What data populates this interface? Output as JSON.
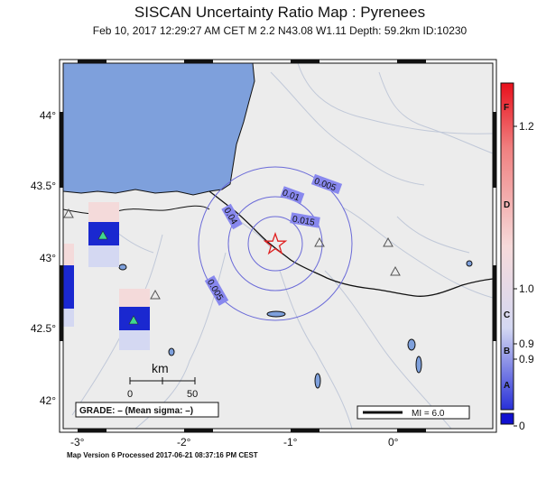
{
  "title": "SISCAN Uncertainty Ratio Map : Pyrenees",
  "subtitle": "Feb 10, 2017 12:29:27 AM CET   M 2.2   N43.08 W1.11   Depth: 59.2km   ID:10230",
  "footer": "Map Version 6 Processed 2017-06-21 08:37:16 PM CEST",
  "axes": {
    "lon_ticks": [
      "-3°",
      "-2°",
      "-1°",
      "0°"
    ],
    "lat_ticks": [
      "44°",
      "43.5°",
      "43°",
      "42.5°",
      "42°"
    ]
  },
  "contours": {
    "labels": [
      "0.005",
      "0.01",
      "0.015",
      "0.04",
      "0.005"
    ]
  },
  "scale_bar": {
    "unit": "km",
    "left_label": "0",
    "right_label": "50"
  },
  "grade_box": {
    "text": "GRADE: – (Mean sigma: –)"
  },
  "mi_legend": {
    "text": "MI = 6.0"
  },
  "colorbar": {
    "grades": [
      "F",
      "D",
      "C",
      "B",
      "A"
    ],
    "values": [
      "1.2",
      "1.0",
      "0.9",
      "0.9",
      "0"
    ],
    "colors": {
      "top": "#e8101c",
      "mid": "#f6d8d8",
      "low": "#c8d0f0",
      "bottom": "#1010d0"
    }
  },
  "colors": {
    "sea": "#7ea0dc",
    "land": "#ececec",
    "contour": "#6a6ad8",
    "epicenter": "#e02020"
  },
  "icons": {
    "epicenter": "star-icon",
    "station": "triangle-icon"
  }
}
